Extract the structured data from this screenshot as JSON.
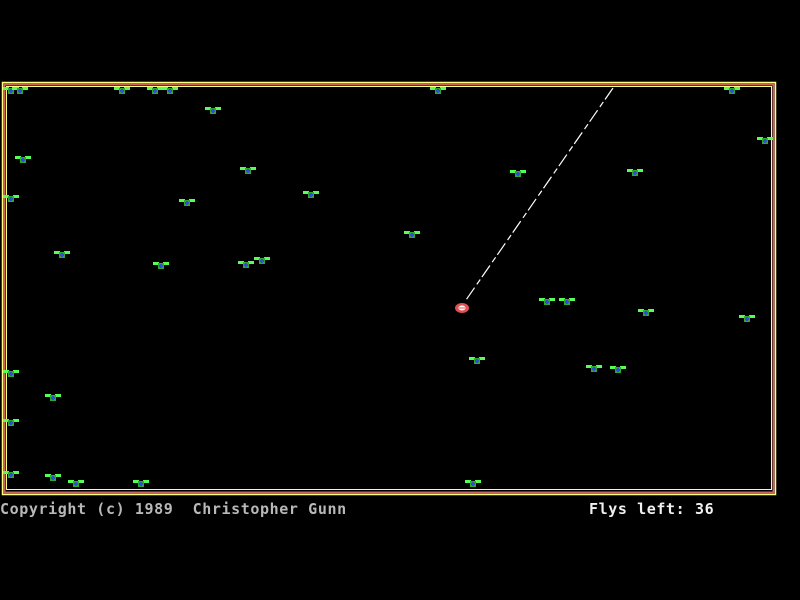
{
  "status": {
    "copyright": "Copyright (c) 1989  Christopher Gunn",
    "flys_label": "Flys left:",
    "flys_left": "36"
  },
  "colors": {
    "background": "#000000",
    "border_outer": "#ffff80",
    "border_inner": "#c86464",
    "fly_wing": "#55ff55",
    "fly_body": "#2fa82f",
    "fly_cross": "#3050d0",
    "frog": "#e05050",
    "tongue": "#ffffff"
  },
  "icons": {
    "fly": "fly-icon",
    "player": "frog-icon"
  }
}
